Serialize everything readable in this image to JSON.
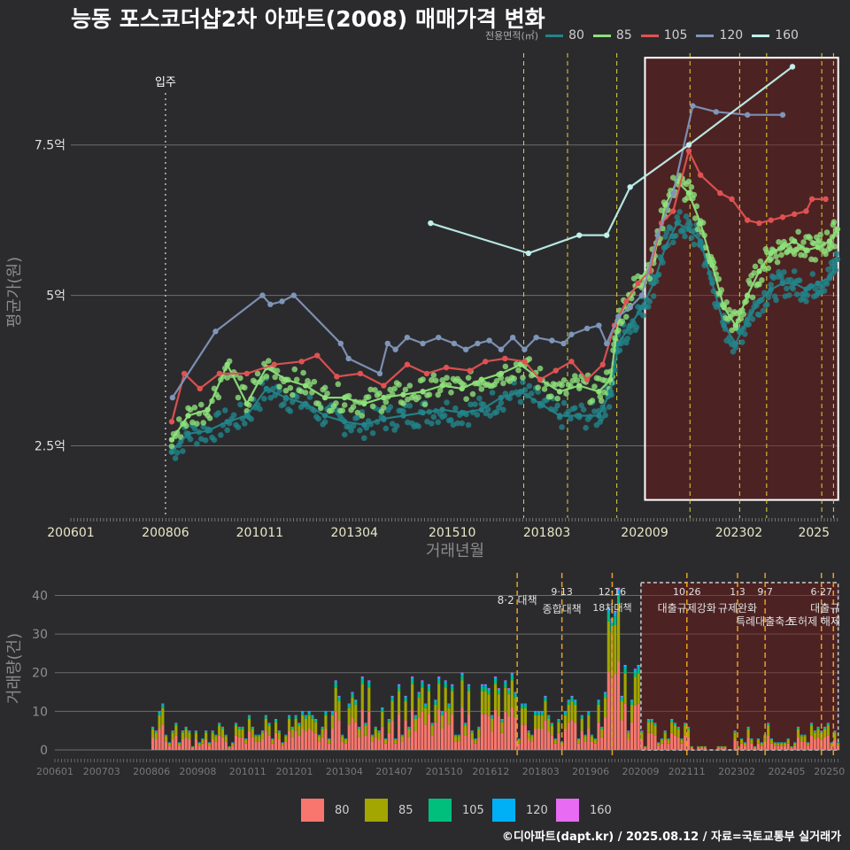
{
  "title": "능동 포스코더샵2차 아파트(2008) 매매가격 변화",
  "credit": "©디아파트(dapt.kr) / 2025.08.12 / 자료=국토교통부 실거래가",
  "legend_title": "전용면적(㎡)",
  "series_colors": {
    "80": "#22848a",
    "85": "#8de07a",
    "105": "#e05252",
    "120": "#7f95b9",
    "160": "#bff0ec"
  },
  "bar_colors": {
    "80": "#f8766d",
    "85": "#a3a500",
    "105": "#00bf7d",
    "120": "#00b0f6",
    "160": "#e76bf3"
  },
  "chart_data": [
    {
      "type": "line",
      "ylabel": "평균가(원)",
      "xlabel": "거래년월",
      "x_ticks": [
        "200601",
        "200806",
        "201011",
        "201304",
        "201510",
        "201803",
        "202009",
        "202302",
        "2025"
      ],
      "y_ticks": [
        "2.5억",
        "5억",
        "7.5억"
      ],
      "ylim": [
        1.3,
        9.1
      ],
      "annotations": [
        {
          "x": 2008.42,
          "label": "입주"
        }
      ],
      "policy_lines": [
        2017.58,
        2018.7,
        2019.96,
        2021.83,
        2023.1,
        2023.79,
        2025.2,
        2025.5
      ],
      "highlight": {
        "x_from": 2020.68,
        "x_to": 2025.62,
        "y_from": 1.6,
        "y_to": 8.95
      },
      "series": [
        {
          "name": "80",
          "x": [
            2008.58,
            2009.0,
            2009.5,
            2010.0,
            2010.5,
            2011.0,
            2011.5,
            2012.0,
            2012.5,
            2013.0,
            2013.5,
            2014.0,
            2014.5,
            2015.0,
            2015.5,
            2016.0,
            2016.5,
            2017.0,
            2017.5,
            2018.0,
            2018.5,
            2019.0,
            2019.5,
            2019.8,
            2020.0,
            2020.3,
            2020.6,
            2020.9,
            2021.2,
            2021.5,
            2021.8,
            2022.1,
            2022.4,
            2022.7,
            2023.0,
            2023.3,
            2023.6,
            2023.9,
            2024.2,
            2024.5,
            2024.8,
            2025.1,
            2025.4,
            2025.6
          ],
          "values": [
            2.4,
            2.7,
            2.75,
            2.9,
            3.0,
            3.45,
            3.3,
            3.2,
            3.0,
            2.9,
            2.85,
            2.95,
            3.0,
            3.05,
            3.1,
            3.05,
            3.1,
            3.3,
            3.4,
            3.2,
            3.0,
            3.0,
            3.0,
            3.4,
            4.2,
            4.5,
            4.8,
            5.2,
            5.8,
            6.2,
            6.1,
            5.9,
            5.2,
            4.5,
            4.2,
            4.6,
            4.9,
            5.1,
            5.2,
            5.2,
            5.1,
            5.2,
            5.3,
            5.6
          ]
        },
        {
          "name": "85",
          "x": [
            2008.58,
            2009.0,
            2009.5,
            2010.0,
            2010.5,
            2011.0,
            2011.5,
            2012.0,
            2012.5,
            2013.0,
            2013.5,
            2014.0,
            2014.5,
            2015.0,
            2015.5,
            2016.0,
            2016.5,
            2017.0,
            2017.5,
            2018.0,
            2018.5,
            2019.0,
            2019.5,
            2019.8,
            2020.0,
            2020.3,
            2020.6,
            2020.9,
            2021.2,
            2021.5,
            2021.8,
            2022.1,
            2022.4,
            2022.7,
            2023.0,
            2023.3,
            2023.6,
            2023.9,
            2024.2,
            2024.5,
            2024.8,
            2025.1,
            2025.4,
            2025.6
          ],
          "values": [
            2.6,
            3.0,
            3.1,
            3.85,
            3.2,
            3.8,
            3.6,
            3.5,
            3.3,
            3.3,
            3.2,
            3.3,
            3.35,
            3.4,
            3.5,
            3.45,
            3.6,
            3.7,
            3.85,
            3.6,
            3.4,
            3.5,
            3.4,
            3.6,
            4.6,
            5.0,
            5.3,
            5.6,
            6.5,
            6.9,
            6.7,
            6.2,
            5.5,
            4.8,
            4.5,
            5.0,
            5.4,
            5.7,
            5.8,
            5.9,
            5.75,
            5.8,
            5.9,
            6.1
          ]
        },
        {
          "name": "105",
          "x": [
            2008.58,
            2008.9,
            2009.3,
            2009.8,
            2010.5,
            2011.2,
            2011.9,
            2012.3,
            2012.8,
            2013.4,
            2014.0,
            2014.6,
            2015.1,
            2015.6,
            2016.2,
            2016.6,
            2017.1,
            2017.6,
            2018.0,
            2018.4,
            2018.8,
            2019.2,
            2019.6,
            2019.9,
            2020.2,
            2020.5,
            2020.8,
            2021.1,
            2021.4,
            2021.8,
            2022.1,
            2022.6,
            2022.9,
            2023.3,
            2023.6,
            2023.9,
            2024.2,
            2024.5,
            2024.8,
            2024.95,
            2025.3
          ],
          "values": [
            2.9,
            3.7,
            3.45,
            3.7,
            3.7,
            3.85,
            3.9,
            4.0,
            3.65,
            3.7,
            3.5,
            3.85,
            3.7,
            3.8,
            3.75,
            3.9,
            3.95,
            3.9,
            3.6,
            3.75,
            3.9,
            3.6,
            3.85,
            4.5,
            4.9,
            5.2,
            5.4,
            6.2,
            6.4,
            7.4,
            7.0,
            6.7,
            6.6,
            6.25,
            6.2,
            6.25,
            6.3,
            6.35,
            6.4,
            6.6,
            6.6
          ]
        },
        {
          "name": "120",
          "x": [
            2008.6,
            2009.7,
            2010.9,
            2011.1,
            2011.4,
            2011.7,
            2012.9,
            2013.1,
            2013.9,
            2014.1,
            2014.3,
            2014.6,
            2015.0,
            2015.4,
            2015.8,
            2016.1,
            2016.4,
            2016.7,
            2017.0,
            2017.3,
            2017.6,
            2017.9,
            2018.3,
            2018.6,
            2018.8,
            2019.2,
            2019.5,
            2019.7,
            2020.0,
            2020.3,
            2020.6,
            2021.0,
            2021.4,
            2021.9,
            2022.5,
            2023.3,
            2024.2
          ],
          "values": [
            3.3,
            4.4,
            5.0,
            4.85,
            4.9,
            5.0,
            4.2,
            3.95,
            3.7,
            4.2,
            4.1,
            4.3,
            4.2,
            4.3,
            4.2,
            4.1,
            4.2,
            4.25,
            4.1,
            4.3,
            4.1,
            4.3,
            4.25,
            4.2,
            4.35,
            4.45,
            4.5,
            4.2,
            4.65,
            4.8,
            5.0,
            6.0,
            6.7,
            8.15,
            8.05,
            8.0,
            8.0
          ]
        },
        {
          "name": "160",
          "x": [
            2015.2,
            2017.7,
            2019.0,
            2019.7,
            2020.3,
            2021.8,
            2024.45
          ],
          "values": [
            6.2,
            5.7,
            6.0,
            6.0,
            6.8,
            7.5,
            8.8
          ]
        }
      ]
    },
    {
      "type": "bar",
      "ylabel": "거래량(건)",
      "x_ticks": [
        "200601",
        "200703",
        "200806",
        "200908",
        "201011",
        "201201",
        "201304",
        "201407",
        "201510",
        "201612",
        "201803",
        "201906",
        "202009",
        "202111",
        "202302",
        "202405",
        "20250"
      ],
      "y_ticks": [
        "0",
        "10",
        "20",
        "30",
        "40"
      ],
      "ylim": [
        0,
        44
      ],
      "policy_labels": [
        {
          "x": 2017.58,
          "date": "8·2",
          "name": "대책"
        },
        {
          "x": 2018.7,
          "date": "9·13",
          "name": "종합대책"
        },
        {
          "x": 2019.96,
          "date": "12·16",
          "name": "18차대책"
        },
        {
          "x": 2021.83,
          "date": "10·26",
          "name": "대출규제강화"
        },
        {
          "x": 2023.1,
          "date": "1·3",
          "name": "규제완화"
        },
        {
          "x": 2023.79,
          "date": "9·7",
          "name": "특례대출축소"
        },
        {
          "x": 2025.2,
          "date": "6·27",
          "name": "대출규"
        },
        {
          "x": 2025.5,
          "date": "",
          "name": "토허제 해제"
        }
      ],
      "highlight": {
        "x_from": 2020.68,
        "x_to": 2025.62
      },
      "monthly_profile": [
        {
          "x_from": 2008.4,
          "x_to": 2008.7,
          "total": 10
        },
        {
          "x_from": 2008.7,
          "x_to": 2010.8,
          "total": 4
        },
        {
          "x_from": 2010.8,
          "x_to": 2012.8,
          "total": 6
        },
        {
          "x_from": 2012.8,
          "x_to": 2016.0,
          "total": 11
        },
        {
          "x_from": 2016.0,
          "x_to": 2017.5,
          "total": 12
        },
        {
          "x_from": 2017.5,
          "x_to": 2019.8,
          "total": 9
        },
        {
          "x_from": 2019.8,
          "x_to": 2020.1,
          "total": 42
        },
        {
          "x_from": 2020.1,
          "x_to": 2020.6,
          "total": 13
        },
        {
          "x_from": 2020.6,
          "x_to": 2021.9,
          "total": 5
        },
        {
          "x_from": 2021.9,
          "x_to": 2023.0,
          "total": 1
        },
        {
          "x_from": 2023.0,
          "x_to": 2025.6,
          "total": 4
        }
      ]
    }
  ]
}
